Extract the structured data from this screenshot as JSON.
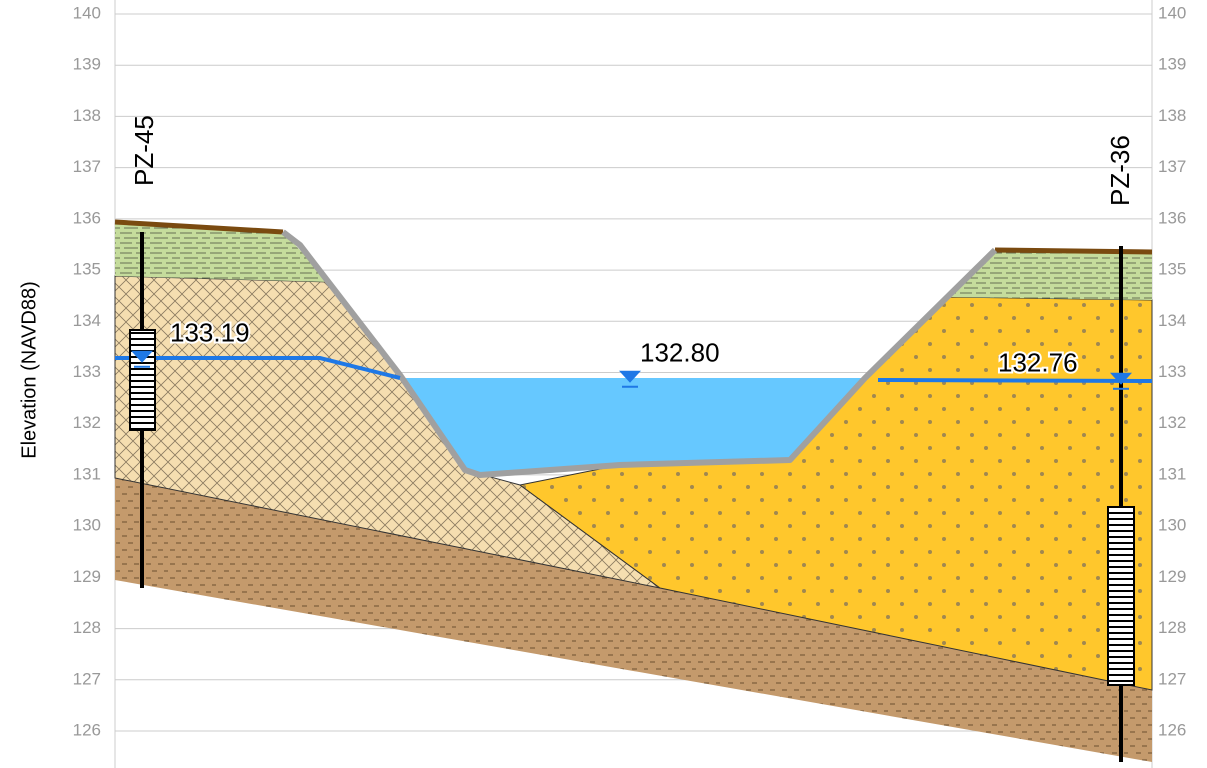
{
  "axis": {
    "label": "Elevation (NAVD88)",
    "ticks": [
      126,
      127,
      128,
      129,
      130,
      131,
      132,
      133,
      134,
      135,
      136,
      137,
      138,
      139,
      140
    ]
  },
  "wells": [
    {
      "name": "PZ-45"
    },
    {
      "name": "PZ-36"
    }
  ],
  "water_levels": [
    {
      "value": 133.19,
      "label": "133.19"
    },
    {
      "value": 132.8,
      "label": "132.80"
    },
    {
      "value": 132.76,
      "label": "132.76"
    }
  ]
}
